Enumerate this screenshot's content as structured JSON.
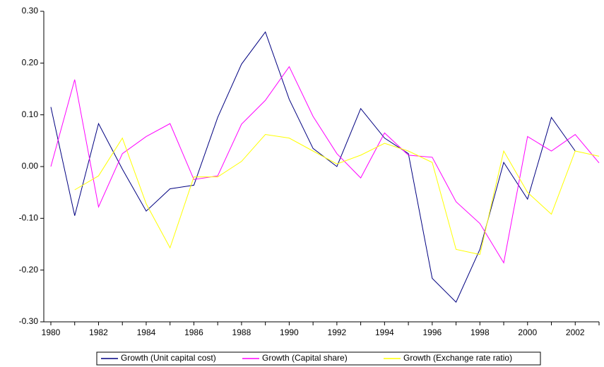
{
  "chart_data": {
    "type": "line",
    "categories": [
      "1980",
      null,
      "1982",
      null,
      "1984",
      null,
      "1986",
      null,
      "1988",
      null,
      "1990",
      null,
      "1992",
      null,
      "1994",
      null,
      "1996",
      null,
      "1998",
      null,
      "2000",
      null,
      "2002",
      null
    ],
    "series": [
      {
        "name": "Growth (Unit capital cost)",
        "color": "#000080",
        "values": [
          0.115,
          -0.095,
          0.083,
          -0.005,
          -0.086,
          -0.043,
          -0.036,
          0.095,
          0.198,
          0.26,
          0.13,
          0.035,
          0.0,
          0.112,
          0.055,
          0.025,
          -0.216,
          -0.262,
          -0.16,
          0.008,
          -0.063,
          0.095,
          0.03,
          null
        ]
      },
      {
        "name": "Growth (Capital share)",
        "color": "#ff00ff",
        "values": [
          0.0,
          0.168,
          -0.078,
          0.025,
          0.058,
          0.083,
          -0.025,
          -0.018,
          0.082,
          0.128,
          0.193,
          0.097,
          0.025,
          -0.022,
          0.065,
          0.022,
          0.018,
          -0.068,
          -0.11,
          -0.186,
          0.058,
          0.03,
          0.062,
          0.007
        ]
      },
      {
        "name": "Growth (Exchange rate ratio)",
        "color": "#ffff00",
        "values": [
          null,
          -0.045,
          -0.018,
          0.055,
          -0.072,
          -0.157,
          -0.02,
          -0.02,
          0.01,
          0.062,
          0.055,
          0.03,
          0.005,
          0.022,
          0.045,
          0.03,
          0.008,
          -0.16,
          -0.17,
          0.03,
          -0.05,
          -0.092,
          0.03,
          0.02
        ]
      }
    ],
    "ylim": [
      -0.3,
      0.3
    ],
    "yticks": [
      {
        "value": -0.3,
        "label": "-0.30"
      },
      {
        "value": -0.2,
        "label": "-0.20"
      },
      {
        "value": -0.1,
        "label": "-0.10"
      },
      {
        "value": 0,
        "label": "0.00"
      },
      {
        "value": 0.1,
        "label": "0.10"
      },
      {
        "value": 0.2,
        "label": "0.20"
      },
      {
        "value": 0.3,
        "label": "0.30"
      }
    ],
    "legend": "bottom"
  }
}
